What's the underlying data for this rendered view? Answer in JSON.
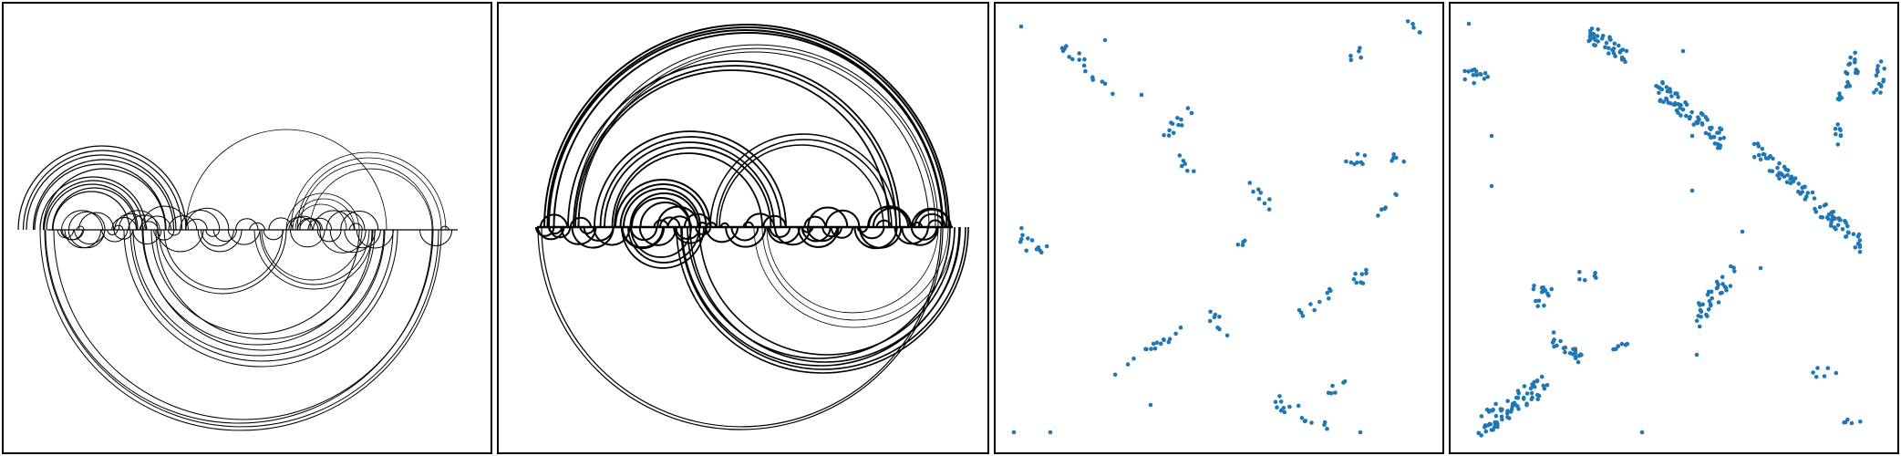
{
  "figure": {
    "panels": [
      {
        "kind": "arc-diagram",
        "variant": "thin"
      },
      {
        "kind": "arc-diagram",
        "variant": "bold"
      },
      {
        "kind": "scatter",
        "marker_color": "#1f77b4"
      },
      {
        "kind": "scatter",
        "marker_color": "#1f77b4"
      }
    ],
    "colors": {
      "line": "#000000",
      "marker": "#1f77b4",
      "background": "#ffffff"
    }
  }
}
